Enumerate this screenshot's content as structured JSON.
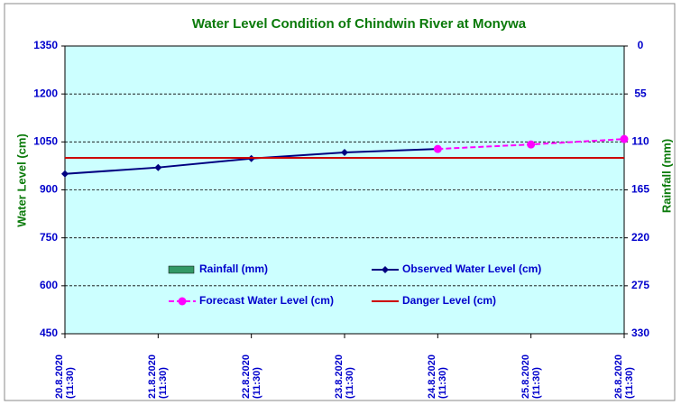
{
  "chart_data": {
    "type": "line",
    "title": "Water Level Condition of Chindwin River at Monywa",
    "categories": [
      "20.8.2020 (11:30)",
      "21.8.2020 (11:30)",
      "22.8.2020 (11:30)",
      "23.8.2020 (11:30)",
      "24.8.2020 (11:30)",
      "25.8.2020 (11:30)",
      "26.8.2020 (11:30)"
    ],
    "ylabel": "Water Level (cm)",
    "y2label": "Rainfall (mm)",
    "ylim": [
      450,
      1350
    ],
    "yticks": [
      450,
      600,
      750,
      900,
      1050,
      1200,
      1350
    ],
    "y2lim": [
      330,
      0
    ],
    "y2ticks": [
      0,
      55,
      110,
      165,
      220,
      275,
      330
    ],
    "grid": true,
    "series": [
      {
        "name": "Rainfall (mm)",
        "color": "#339966",
        "kind": "bar",
        "axis": "y2",
        "values": [
          null,
          null,
          null,
          null,
          null,
          null,
          null
        ]
      },
      {
        "name": "Observed Water Level (cm)",
        "color": "#000080",
        "kind": "line",
        "marker": "diamond",
        "values": [
          950,
          970,
          998,
          1017,
          1028,
          null,
          null
        ]
      },
      {
        "name": "Forecast Water Level (cm)",
        "color": "#ff00ff",
        "kind": "line",
        "dashed": true,
        "marker": "circle",
        "values": [
          null,
          null,
          null,
          null,
          1028,
          1042,
          1059
        ]
      },
      {
        "name": "Danger Level (cm)",
        "color": "#cc0000",
        "kind": "line",
        "values": [
          1000,
          1000,
          1000,
          1000,
          1000,
          1000,
          1000
        ]
      }
    ]
  }
}
